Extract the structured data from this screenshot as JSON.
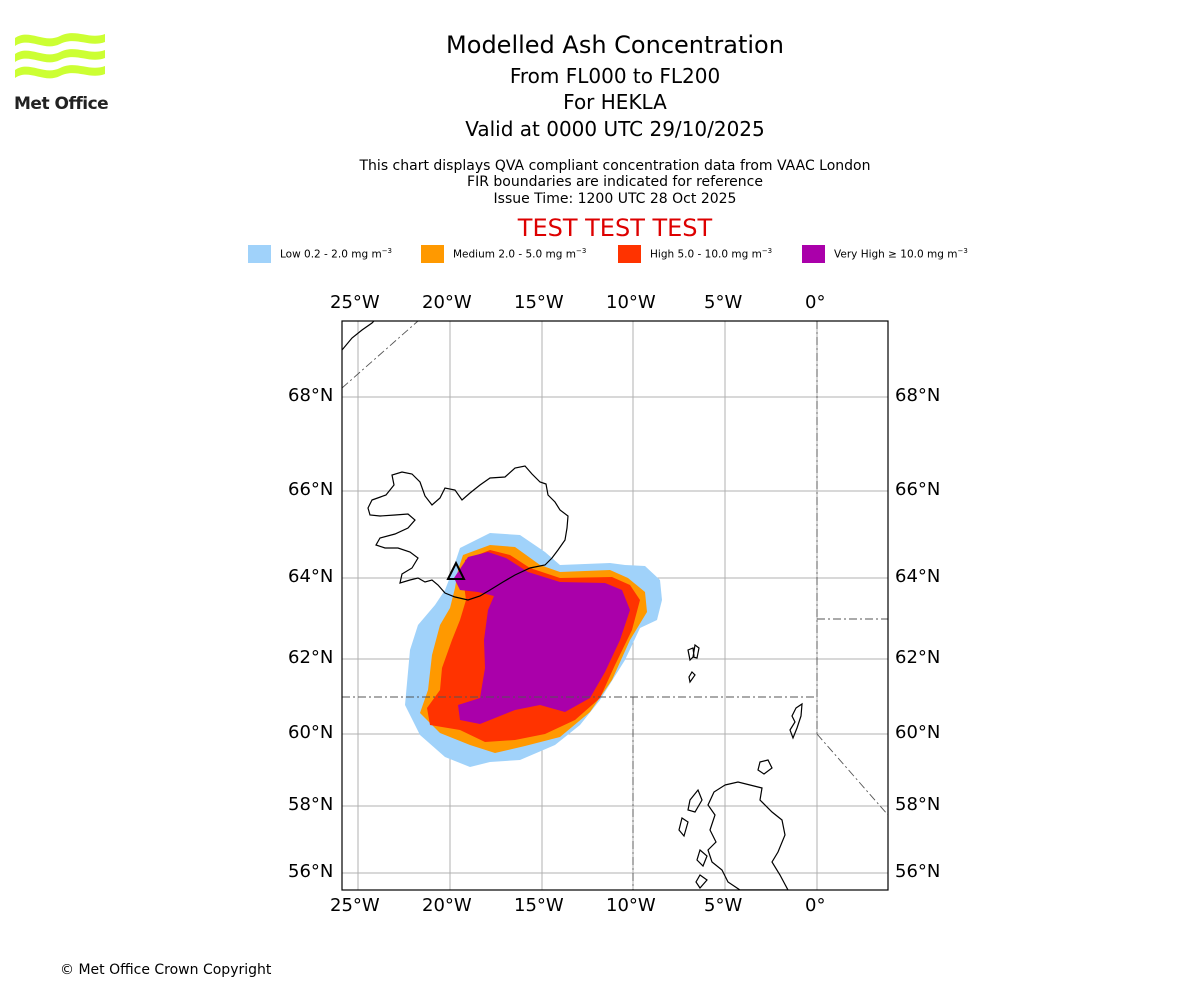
{
  "header": {
    "title": "Modelled Ash Concentration",
    "levels": "From FL000 to FL200",
    "volcano": "For HEKLA",
    "valid": "Valid at 0000 UTC 29/10/2025",
    "note1": "This chart displays QVA compliant concentration data from VAAC London",
    "note2": "FIR boundaries are indicated for reference",
    "issue": "Issue Time: 1200 UTC 28 Oct 2025",
    "test_banner": "TEST TEST TEST",
    "test_color": "#dd0000"
  },
  "logo": {
    "text": "Met Office",
    "wave_color": "#ccff33"
  },
  "legend": [
    {
      "label": "Low 0.2 - 2.0 mg m",
      "sup": "−3",
      "color": "#a0d2fa"
    },
    {
      "label": "Medium 2.0 - 5.0 mg m",
      "sup": "−3",
      "color": "#ff9900"
    },
    {
      "label": "High 5.0 - 10.0 mg m",
      "sup": "−3",
      "color": "#ff3300"
    },
    {
      "label": "Very High  ≥  10.0 mg m",
      "sup": "−3",
      "color": "#aa00aa"
    }
  ],
  "map": {
    "lon_ticks": [
      "25°W",
      "20°W",
      "15°W",
      "10°W",
      "5°W",
      "0°"
    ],
    "lat_ticks": [
      "68°N",
      "66°N",
      "64°N",
      "62°N",
      "60°N",
      "58°N",
      "56°N"
    ]
  },
  "footer": {
    "copyright": "© Met Office Crown Copyright"
  }
}
